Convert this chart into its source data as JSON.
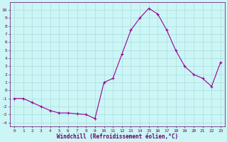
{
  "x": [
    0,
    1,
    2,
    3,
    4,
    5,
    6,
    7,
    8,
    9,
    10,
    11,
    12,
    13,
    14,
    15,
    16,
    17,
    18,
    19,
    20,
    21,
    22,
    23
  ],
  "y": [
    -1.0,
    -1.0,
    -1.5,
    -2.0,
    -2.5,
    -2.8,
    -2.8,
    -2.9,
    -3.0,
    -3.5,
    1.0,
    1.5,
    4.5,
    7.5,
    9.0,
    10.2,
    9.5,
    7.5,
    5.0,
    3.0,
    2.0,
    1.5,
    0.5,
    3.5
  ],
  "line_color": "#990099",
  "marker": "+",
  "marker_size": 3,
  "xlabel": "Windchill (Refroidissement éolien,°C)",
  "ylim": [
    -4.5,
    11.0
  ],
  "xlim": [
    -0.5,
    23.5
  ],
  "bg_color": "#ccf5f5",
  "grid_color": "#aadddd",
  "tick_color": "#660066",
  "label_color": "#660066",
  "yticks": [
    -4,
    -3,
    -2,
    -1,
    0,
    1,
    2,
    3,
    4,
    5,
    6,
    7,
    8,
    9,
    10
  ],
  "xticks": [
    0,
    1,
    2,
    3,
    4,
    5,
    6,
    7,
    8,
    9,
    10,
    11,
    12,
    13,
    14,
    15,
    16,
    17,
    18,
    19,
    20,
    21,
    22,
    23
  ]
}
